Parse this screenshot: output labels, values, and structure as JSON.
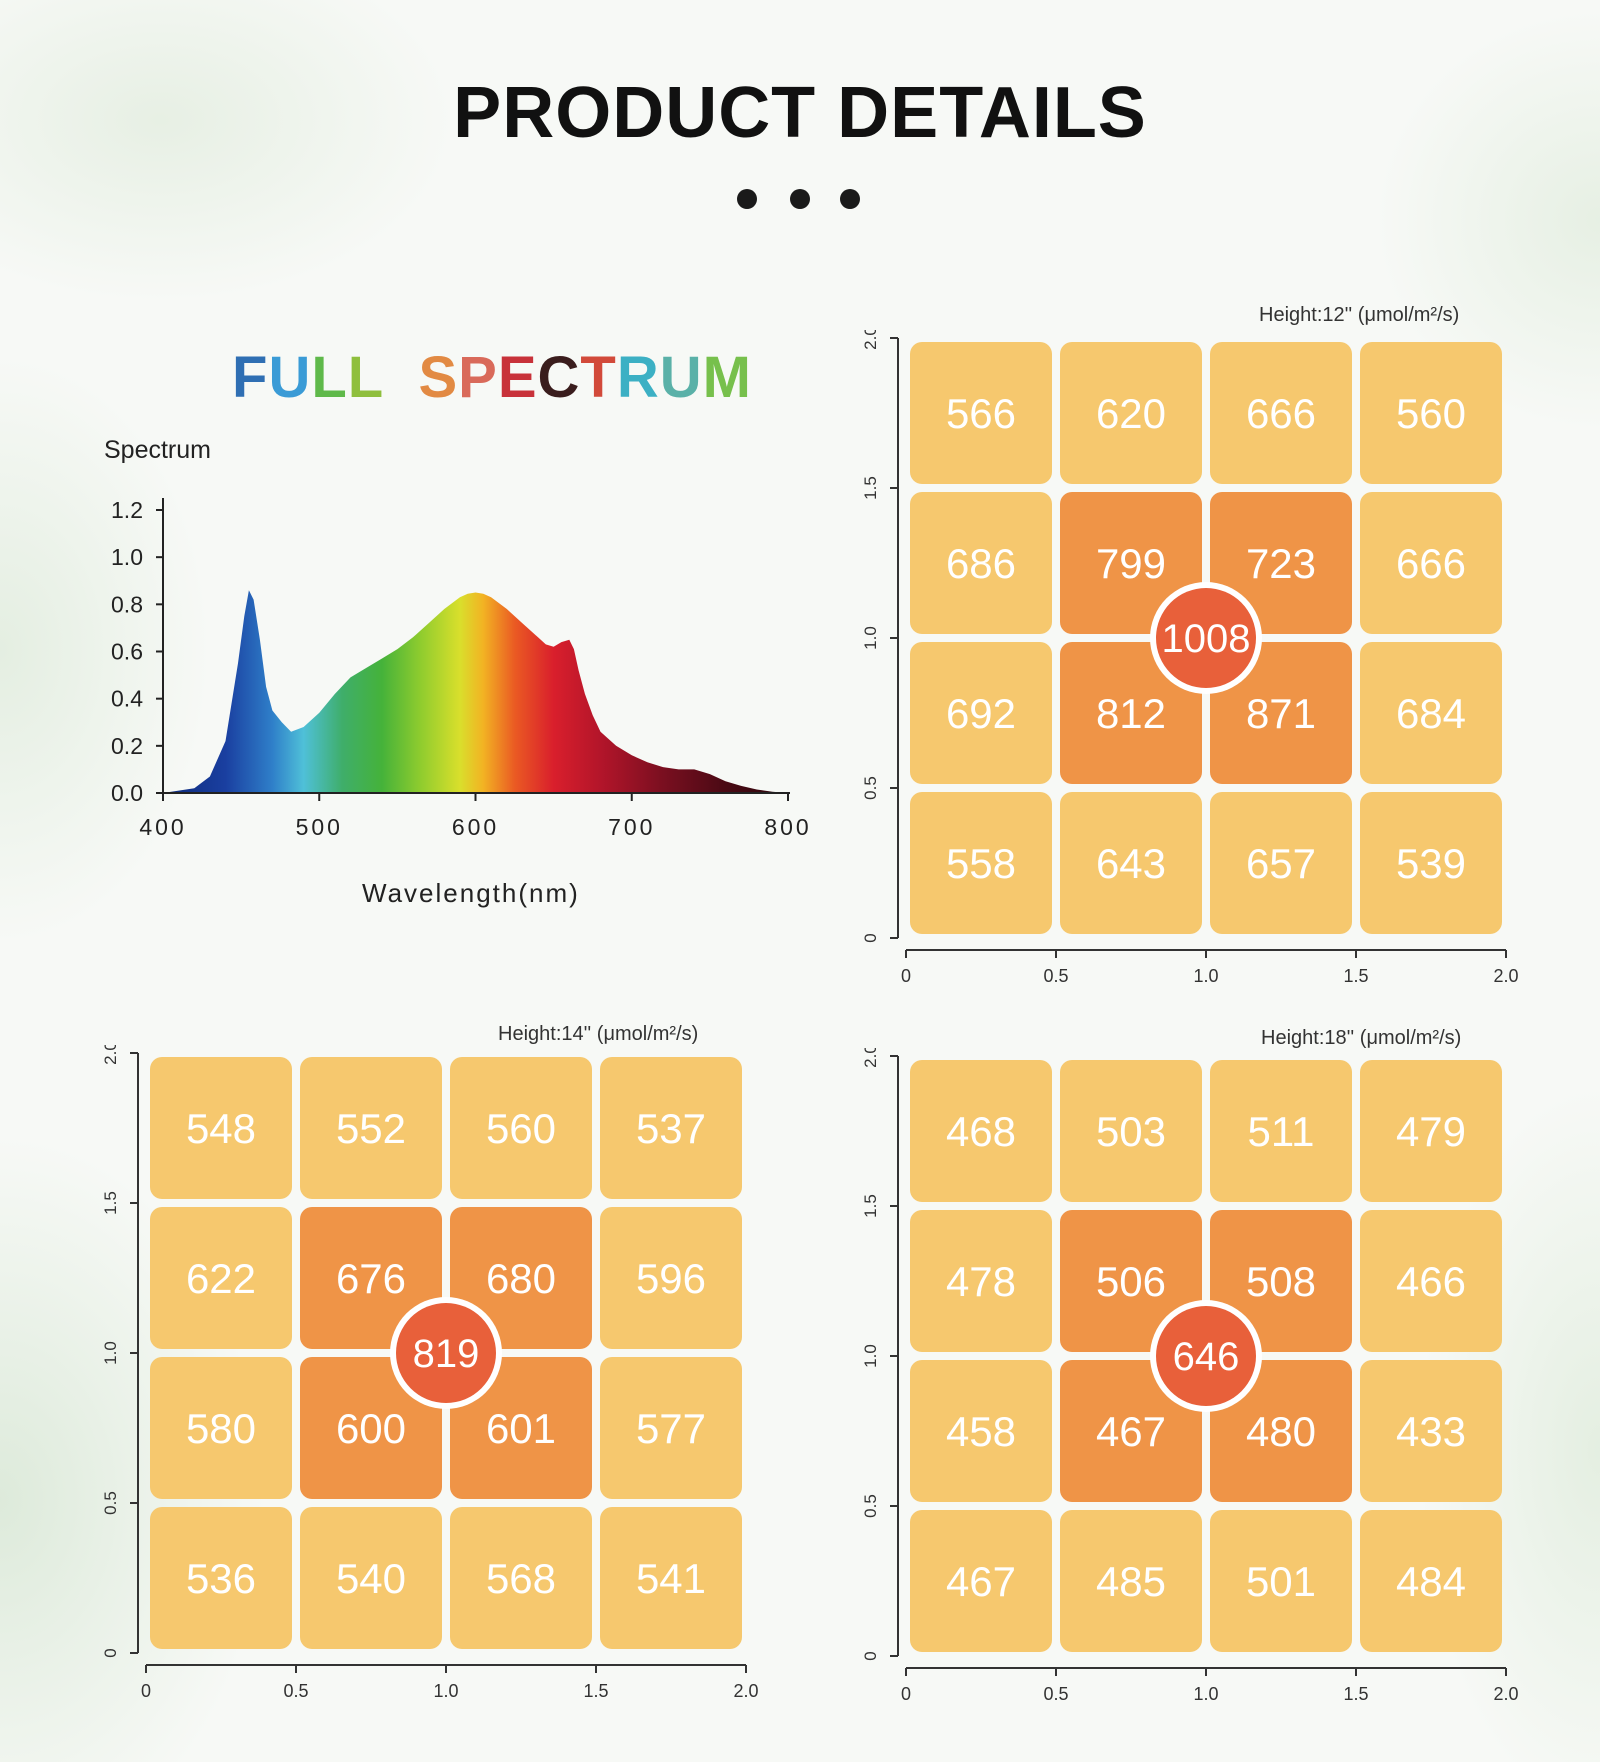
{
  "header": {
    "title": "PRODUCT DETAILS"
  },
  "pagination_dots": 3,
  "spectrum": {
    "heading_letters": [
      {
        "ch": "F",
        "color": "#2f6fb3"
      },
      {
        "ch": "U",
        "color": "#3a9bd6"
      },
      {
        "ch": "L",
        "color": "#5fb94a"
      },
      {
        "ch": "L",
        "color": "#8fbf3d"
      },
      {
        "ch": " ",
        "color": "#000000"
      },
      {
        "ch": " ",
        "color": "#000000"
      },
      {
        "ch": "S",
        "color": "#e28a43"
      },
      {
        "ch": "P",
        "color": "#d96a5a"
      },
      {
        "ch": "E",
        "color": "#c8323a"
      },
      {
        "ch": "C",
        "color": "#3a1d1d"
      },
      {
        "ch": "T",
        "color": "#d24a3a"
      },
      {
        "ch": "R",
        "color": "#3cb0c4"
      },
      {
        "ch": "U",
        "color": "#5ab1a8"
      },
      {
        "ch": "M",
        "color": "#77c04c"
      }
    ]
  },
  "chart_data": [
    {
      "type": "area",
      "title": "FULL  SPECTRUM",
      "subtitle": "Spectrum",
      "xlabel": "Wavelength(nm)",
      "ylabel": "",
      "xlim": [
        400,
        800
      ],
      "ylim": [
        0,
        1.2
      ],
      "x_ticks": [
        "400",
        "500",
        "600",
        "700",
        "800"
      ],
      "y_ticks": [
        "0.0",
        "0.2",
        "0.4",
        "0.6",
        "0.8",
        "1.0",
        "1.2"
      ],
      "series": [
        {
          "x": [
            400,
            420,
            430,
            440,
            448,
            452,
            455,
            458,
            462,
            466,
            470,
            476,
            482,
            490,
            500,
            510,
            520,
            530,
            540,
            550,
            560,
            570,
            580,
            590,
            595,
            600,
            605,
            610,
            620,
            630,
            640,
            645,
            650,
            655,
            660,
            663,
            666,
            670,
            675,
            680,
            690,
            700,
            710,
            720,
            730,
            740,
            750,
            760,
            770,
            780,
            790,
            800
          ],
          "values": [
            0.0,
            0.02,
            0.07,
            0.22,
            0.55,
            0.75,
            0.86,
            0.82,
            0.65,
            0.45,
            0.35,
            0.3,
            0.26,
            0.28,
            0.34,
            0.42,
            0.49,
            0.53,
            0.57,
            0.61,
            0.66,
            0.72,
            0.78,
            0.83,
            0.845,
            0.85,
            0.845,
            0.83,
            0.78,
            0.72,
            0.66,
            0.63,
            0.62,
            0.64,
            0.65,
            0.61,
            0.52,
            0.42,
            0.33,
            0.26,
            0.2,
            0.16,
            0.13,
            0.11,
            0.1,
            0.1,
            0.08,
            0.05,
            0.03,
            0.015,
            0.005,
            0.0
          ]
        }
      ]
    },
    {
      "type": "heatmap",
      "title": "Height:12'' (μmol/m²/s)",
      "x_ticks": [
        "0",
        "0.5",
        "1.0",
        "1.5",
        "2.0"
      ],
      "y_ticks": [
        "0",
        "0.5",
        "1.0",
        "1.5",
        "2.0"
      ],
      "xlim": [
        0,
        2.0
      ],
      "ylim": [
        0,
        2.0
      ],
      "rows": [
        [
          566,
          620,
          666,
          560
        ],
        [
          686,
          799,
          723,
          666
        ],
        [
          692,
          812,
          871,
          684
        ],
        [
          558,
          643,
          657,
          539
        ]
      ],
      "center": 1008
    },
    {
      "type": "heatmap",
      "title": "Height:14'' (μmol/m²/s)",
      "x_ticks": [
        "0",
        "0.5",
        "1.0",
        "1.5",
        "2.0"
      ],
      "y_ticks": [
        "0",
        "0.5",
        "1.0",
        "1.5",
        "2.0"
      ],
      "xlim": [
        0,
        2.0
      ],
      "ylim": [
        0,
        2.0
      ],
      "rows": [
        [
          548,
          552,
          560,
          537
        ],
        [
          622,
          676,
          680,
          596
        ],
        [
          580,
          600,
          601,
          577
        ],
        [
          536,
          540,
          568,
          541
        ]
      ],
      "center": 819
    },
    {
      "type": "heatmap",
      "title": "Height:18'' (μmol/m²/s)",
      "x_ticks": [
        "0",
        "0.5",
        "1.0",
        "1.5",
        "2.0"
      ],
      "y_ticks": [
        "0",
        "0.5",
        "1.0",
        "1.5",
        "2.0"
      ],
      "xlim": [
        0,
        2.0
      ],
      "ylim": [
        0,
        2.0
      ],
      "rows": [
        [
          468,
          503,
          511,
          479
        ],
        [
          478,
          506,
          508,
          466
        ],
        [
          458,
          467,
          480,
          433
        ],
        [
          467,
          485,
          501,
          484
        ]
      ],
      "center": 646
    }
  ],
  "colors": {
    "cell_outer": "#f6c86e",
    "cell_inner": "#ef9447",
    "center_circle": "#e8603a",
    "cell_text": "#ffffff"
  }
}
